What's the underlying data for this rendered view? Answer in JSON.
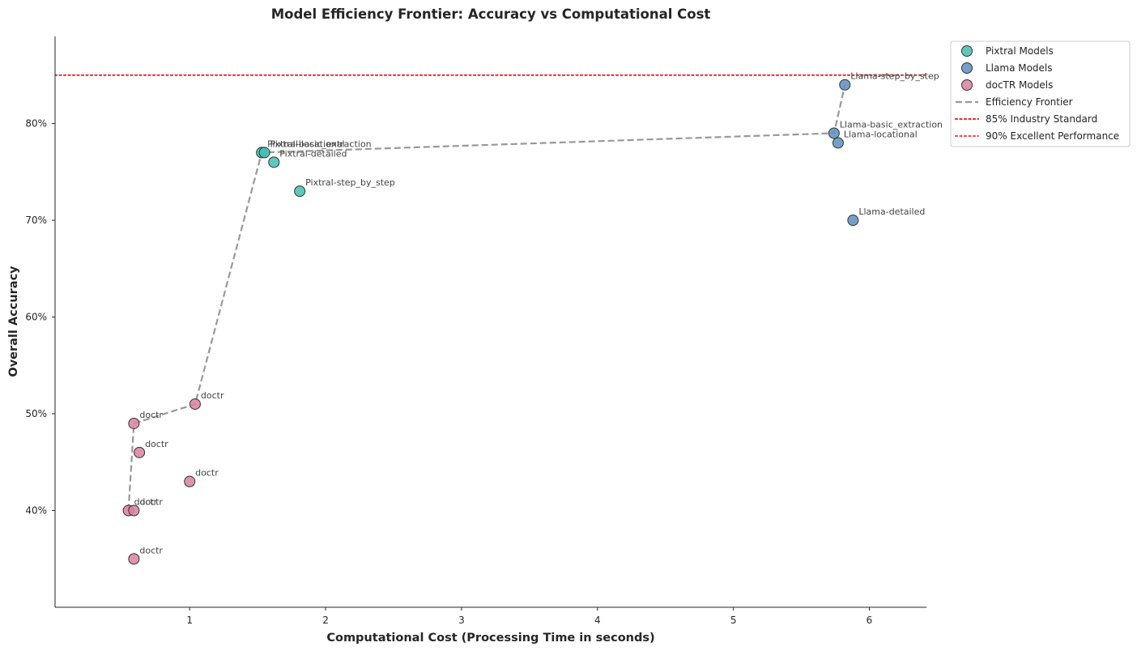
{
  "chart_data": {
    "type": "scatter",
    "title": "Model Efficiency Frontier: Accuracy vs Computational Cost",
    "xlabel": "Computational Cost (Processing Time in seconds)",
    "ylabel": "Overall Accuracy",
    "xlim": [
      0.01,
      6.42
    ],
    "ylim": [
      30,
      89
    ],
    "xticks": [
      1,
      2,
      3,
      4,
      5,
      6
    ],
    "yticks": [
      40,
      50,
      60,
      70,
      80
    ],
    "ytick_format": "{v}%",
    "grid": false,
    "legend_position": "outside-top-right",
    "series": [
      {
        "name": "Pixtral Models",
        "color": "#40bfb0",
        "points": [
          {
            "x": 1.53,
            "y": 77,
            "label": "Pixtral-basic_extraction"
          },
          {
            "x": 1.55,
            "y": 77,
            "label": "Pixtral-locational"
          },
          {
            "x": 1.62,
            "y": 76,
            "label": "Pixtral-detailed"
          },
          {
            "x": 1.81,
            "y": 73,
            "label": "Pixtral-step_by_step"
          }
        ]
      },
      {
        "name": "Llama Models",
        "color": "#5b8fbf",
        "points": [
          {
            "x": 5.74,
            "y": 79,
            "label": "Llama-basic_extraction"
          },
          {
            "x": 5.77,
            "y": 78,
            "label": "Llama-locational"
          },
          {
            "x": 5.82,
            "y": 84,
            "label": "Llama-step_by_step"
          },
          {
            "x": 5.88,
            "y": 70,
            "label": "Llama-detailed"
          }
        ]
      },
      {
        "name": "docTR Models",
        "color": "#dc7fa0",
        "points": [
          {
            "x": 0.55,
            "y": 40,
            "label": "doctr"
          },
          {
            "x": 0.59,
            "y": 40,
            "label": "doctr"
          },
          {
            "x": 0.59,
            "y": 49,
            "label": "doctr"
          },
          {
            "x": 0.63,
            "y": 46,
            "label": "doctr"
          },
          {
            "x": 0.59,
            "y": 35,
            "label": "doctr"
          },
          {
            "x": 1.0,
            "y": 43,
            "label": "doctr"
          },
          {
            "x": 1.04,
            "y": 51,
            "label": "doctr"
          }
        ]
      }
    ],
    "frontier": {
      "name": "Efficiency Frontier",
      "color": "#999999",
      "points": [
        {
          "x": 0.55,
          "y": 40
        },
        {
          "x": 0.59,
          "y": 49
        },
        {
          "x": 1.04,
          "y": 51
        },
        {
          "x": 1.53,
          "y": 77
        },
        {
          "x": 5.74,
          "y": 79
        },
        {
          "x": 5.82,
          "y": 84
        }
      ]
    },
    "reference_lines": [
      {
        "name": "85% Industry Standard",
        "y": 85,
        "color": "#e8343a"
      },
      {
        "name": "90% Excellent Performance",
        "y": 90,
        "color": "#f05a4f"
      }
    ]
  }
}
